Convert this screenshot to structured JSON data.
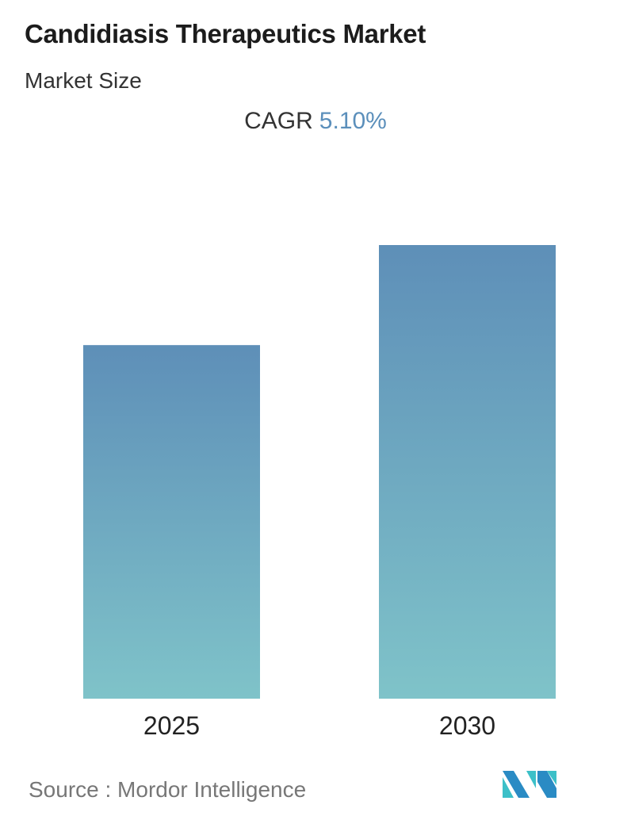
{
  "title": "Candidiasis Therapeutics Market",
  "subtitle": "Market Size",
  "cagr": {
    "label": "CAGR",
    "value": "5.10%"
  },
  "source": "Source :  Mordor Intelligence",
  "logo": {
    "name": "Mordor Intelligence logo",
    "colors": [
      "#2a8bc4",
      "#3cc0c8"
    ]
  },
  "chart_data": {
    "type": "bar",
    "categories": [
      "2025",
      "2030"
    ],
    "values": [
      100,
      128.3
    ],
    "value_units": "relative index (no values printed)",
    "xlabel": "",
    "ylabel": "",
    "ylim": [
      0,
      128.3
    ],
    "grid": false,
    "colors": {
      "bar_top": "#5e8fb8",
      "bar_bottom": "#7fc3c9",
      "cagr_value": "#5b8fbb"
    }
  }
}
